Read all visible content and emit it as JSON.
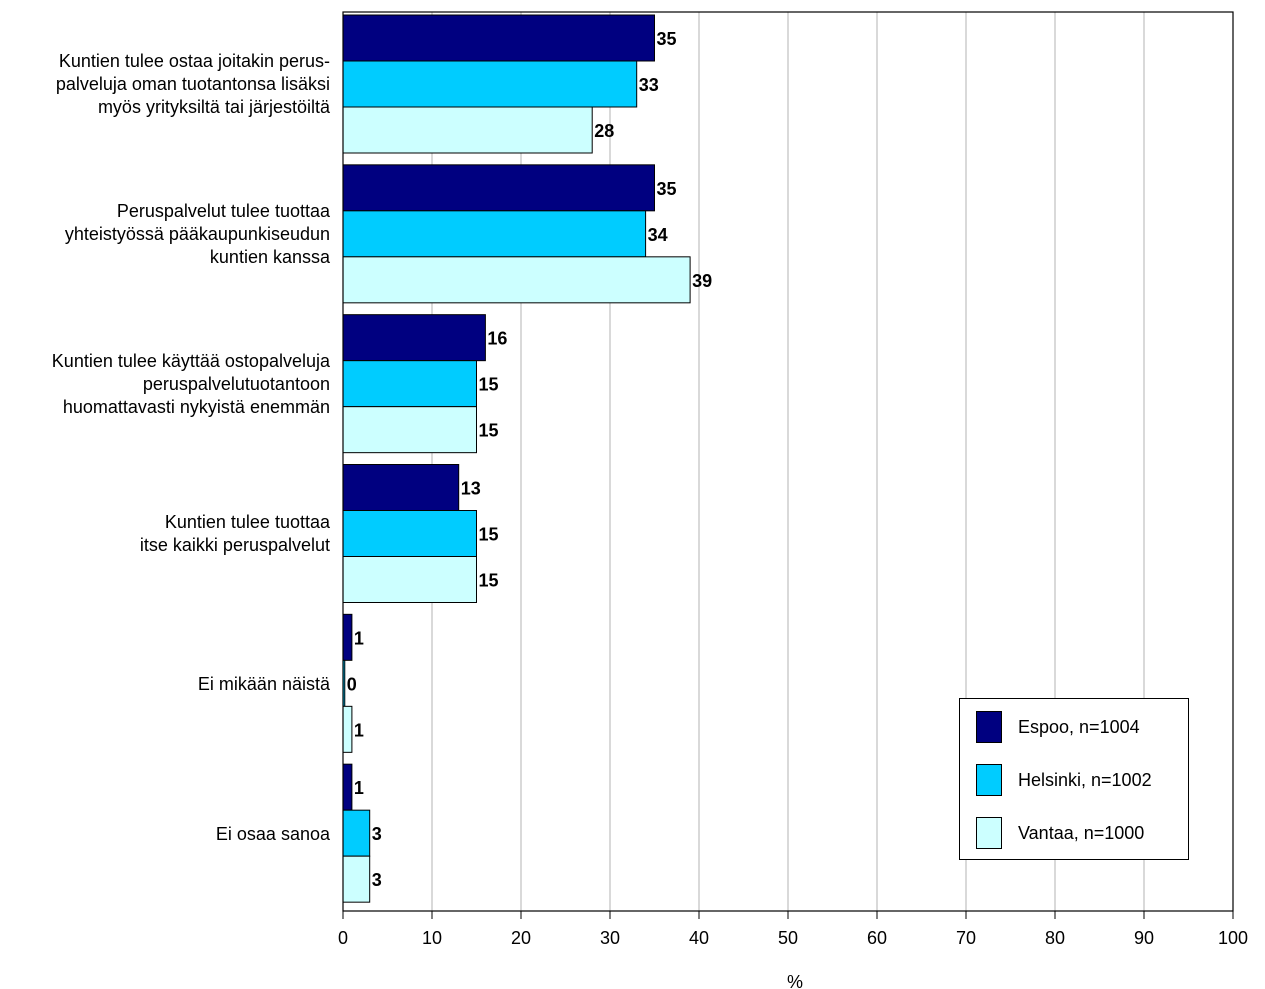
{
  "chart_data": {
    "type": "bar",
    "orientation": "horizontal",
    "categories": [
      "Kuntien tulee ostaa joitakin perus-\npalveluja oman tuotantonsa lisäksi\nmyös yrityksiltä tai järjestöiltä",
      "Peruspalvelut tulee tuottaa\nyhteistyössä pääkaupunkiseudun\nkuntien kanssa",
      "Kuntien tulee käyttää ostopalveluja\nperuspalvelutuotantoon\nhuomattavasti nykyistä enemmän",
      "Kuntien tulee tuottaa\nitse kaikki peruspalvelut",
      "Ei mikään näistä",
      "Ei osaa sanoa"
    ],
    "series": [
      {
        "name": "Espoo, n=1004",
        "color": "#000080",
        "values": [
          35,
          35,
          16,
          13,
          1,
          1
        ],
        "labels": [
          "35",
          "35",
          "16",
          "13",
          "1",
          "1"
        ]
      },
      {
        "name": "Helsinki, n=1002",
        "color": "#00CCFF",
        "values": [
          33,
          34,
          15,
          15,
          0.2,
          3
        ],
        "labels": [
          "33",
          "34",
          "15",
          "15",
          "0",
          "3"
        ]
      },
      {
        "name": "Vantaa, n=1000",
        "color": "#CCFFFF",
        "values": [
          28,
          39,
          15,
          15,
          1,
          3
        ],
        "labels": [
          "28",
          "39",
          "15",
          "15",
          "1",
          "3"
        ]
      }
    ],
    "xlabel": "%",
    "ylabel": "",
    "title": "",
    "xlim": [
      0,
      100
    ],
    "xticks": [
      0,
      10,
      20,
      30,
      40,
      50,
      60,
      70,
      80,
      90,
      100
    ],
    "grid": "vertical",
    "legend_position": "bottom-right"
  }
}
